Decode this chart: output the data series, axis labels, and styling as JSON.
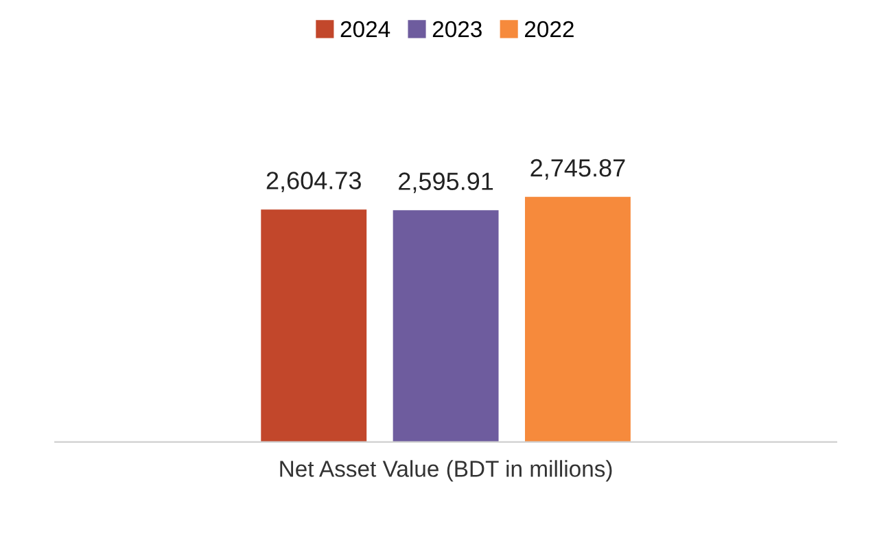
{
  "chart_data": {
    "type": "bar",
    "xlabel": "Net Asset Value (BDT in millions)",
    "categories": [
      null
    ],
    "series": [
      {
        "name": "2024",
        "color": "#c2472b",
        "values": [
          2604.73
        ],
        "value_labels": [
          "2,604.73"
        ]
      },
      {
        "name": "2023",
        "color": "#6e5c9e",
        "values": [
          2595.91
        ],
        "value_labels": [
          "2,595.91"
        ]
      },
      {
        "name": "2022",
        "color": "#f68a3c",
        "values": [
          2745.87
        ],
        "value_labels": [
          "2,745.87"
        ]
      }
    ],
    "legend": "top",
    "grid": false
  }
}
